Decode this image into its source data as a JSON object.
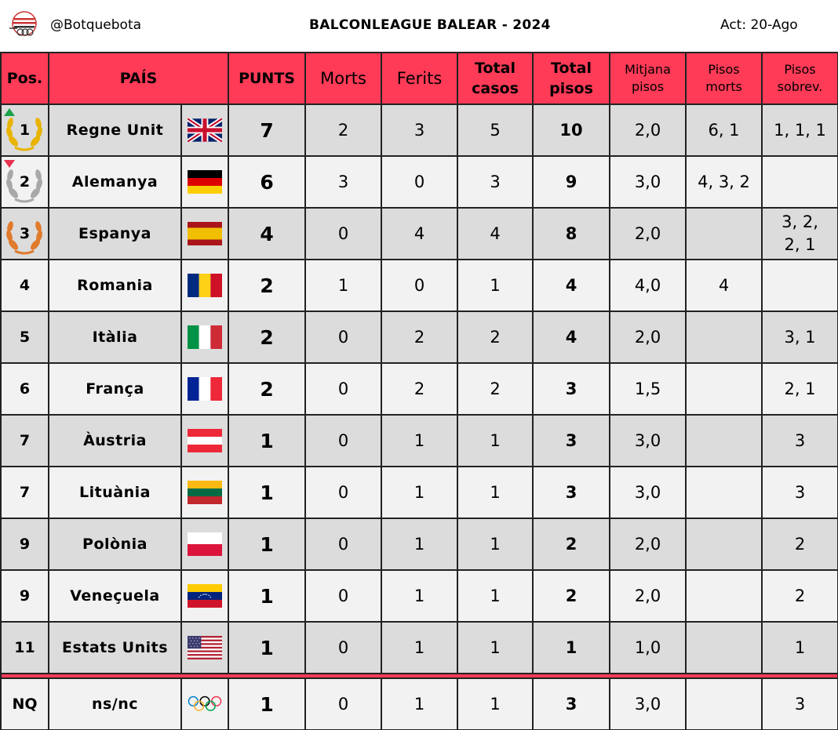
{
  "header": {
    "handle": "@Botquebota",
    "title": "BALCONLEAGUE BALEAR - 2024",
    "updated": "Act: 20-Ago"
  },
  "columns": {
    "pos": "Pos.",
    "country": "PAÍS",
    "points": "PUNTS",
    "deaths": "Morts",
    "injured": "Ferits",
    "total_cases_1": "Total",
    "total_cases_2": "casos",
    "total_floors_1": "Total",
    "total_floors_2": "pisos",
    "avg_floors_1": "Mitjana",
    "avg_floors_2": "pisos",
    "dead_floors_1": "Pisos",
    "dead_floors_2": "morts",
    "surv_floors_1": "Pisos",
    "surv_floors_2": "sobrev."
  },
  "rows": [
    {
      "pos": "1",
      "country": "Regne Unit",
      "flag": "uk-flag",
      "points": "7",
      "deaths": "2",
      "injured": "3",
      "total_cases": "5",
      "total_floors": "10",
      "avg": "2,0",
      "dead_floors": "6, 1",
      "surv_floors": "1, 1, 1",
      "medal": "gold",
      "trend": "up"
    },
    {
      "pos": "2",
      "country": "Alemanya",
      "flag": "germany-flag",
      "points": "6",
      "deaths": "3",
      "injured": "0",
      "total_cases": "3",
      "total_floors": "9",
      "avg": "3,0",
      "dead_floors": "4, 3, 2",
      "surv_floors": "",
      "medal": "silver",
      "trend": "down"
    },
    {
      "pos": "3",
      "country": "Espanya",
      "flag": "spain-flag",
      "points": "4",
      "deaths": "0",
      "injured": "4",
      "total_cases": "4",
      "total_floors": "8",
      "avg": "2,0",
      "dead_floors": "",
      "surv_floors_1": "3, 2,",
      "surv_floors_2": "2, 1",
      "medal": "bronze"
    },
    {
      "pos": "4",
      "country": "Romania",
      "flag": "romania-flag",
      "points": "2",
      "deaths": "1",
      "injured": "0",
      "total_cases": "1",
      "total_floors": "4",
      "avg": "4,0",
      "dead_floors": "4",
      "surv_floors": ""
    },
    {
      "pos": "5",
      "country": "Itàlia",
      "flag": "italy-flag",
      "points": "2",
      "deaths": "0",
      "injured": "2",
      "total_cases": "2",
      "total_floors": "4",
      "avg": "2,0",
      "dead_floors": "",
      "surv_floors": "3, 1"
    },
    {
      "pos": "6",
      "country": "França",
      "flag": "france-flag",
      "points": "2",
      "deaths": "0",
      "injured": "2",
      "total_cases": "2",
      "total_floors": "3",
      "avg": "1,5",
      "dead_floors": "",
      "surv_floors": "2, 1"
    },
    {
      "pos": "7",
      "country": "Àustria",
      "flag": "austria-flag",
      "points": "1",
      "deaths": "0",
      "injured": "1",
      "total_cases": "1",
      "total_floors": "3",
      "avg": "3,0",
      "dead_floors": "",
      "surv_floors": "3"
    },
    {
      "pos": "7",
      "country": "Lituània",
      "flag": "lithuania-flag",
      "points": "1",
      "deaths": "0",
      "injured": "1",
      "total_cases": "1",
      "total_floors": "3",
      "avg": "3,0",
      "dead_floors": "",
      "surv_floors": "3"
    },
    {
      "pos": "9",
      "country": "Polònia",
      "flag": "poland-flag",
      "points": "1",
      "deaths": "0",
      "injured": "1",
      "total_cases": "1",
      "total_floors": "2",
      "avg": "2,0",
      "dead_floors": "",
      "surv_floors": "2"
    },
    {
      "pos": "9",
      "country": "Veneçuela",
      "flag": "venezuela-flag",
      "points": "1",
      "deaths": "0",
      "injured": "1",
      "total_cases": "1",
      "total_floors": "2",
      "avg": "2,0",
      "dead_floors": "",
      "surv_floors": "2"
    },
    {
      "pos": "11",
      "country": "Estats Units",
      "flag": "usa-flag",
      "points": "1",
      "deaths": "0",
      "injured": "1",
      "total_cases": "1",
      "total_floors": "1",
      "avg": "1,0",
      "dead_floors": "",
      "surv_floors": "1"
    }
  ],
  "nq_row": {
    "pos": "NQ",
    "country": "ns/nc",
    "flag": "olympic-rings-icon",
    "points": "1",
    "deaths": "0",
    "injured": "1",
    "total_cases": "1",
    "total_floors": "3",
    "avg": "3,0",
    "dead_floors": "",
    "surv_floors": "3"
  },
  "colors": {
    "header_red": "#ff3b57",
    "row_dark": "#dcdcdc",
    "row_light": "#f2f2f2",
    "gold": "#e8b400",
    "silver": "#a8a8a8",
    "bronze": "#e07a2c",
    "up_arrow": "#1aa34a",
    "down_arrow": "#e8334f"
  }
}
